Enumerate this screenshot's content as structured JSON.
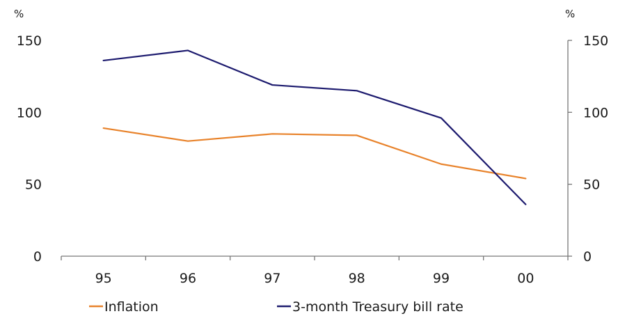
{
  "chart_data": {
    "type": "line",
    "title": "",
    "categories": [
      "95",
      "96",
      "97",
      "98",
      "99",
      "00"
    ],
    "series": [
      {
        "name": "Inflation",
        "color": "#e8822a",
        "axis": "left",
        "values": [
          89,
          80,
          85,
          84,
          64,
          54
        ]
      },
      {
        "name": "3-month Treasury bill rate",
        "color": "#1c1a6e",
        "axis": "right",
        "values": [
          136,
          143,
          119,
          115,
          96,
          36
        ]
      }
    ],
    "y_left": {
      "unit": "%",
      "ticks": [
        "0",
        "50",
        "100",
        "150"
      ],
      "range": [
        0,
        150
      ]
    },
    "y_right": {
      "unit": "%",
      "ticks": [
        "0",
        "50",
        "100",
        "150"
      ],
      "range": [
        0,
        150
      ]
    },
    "grid": false,
    "legend_position": "bottom"
  }
}
